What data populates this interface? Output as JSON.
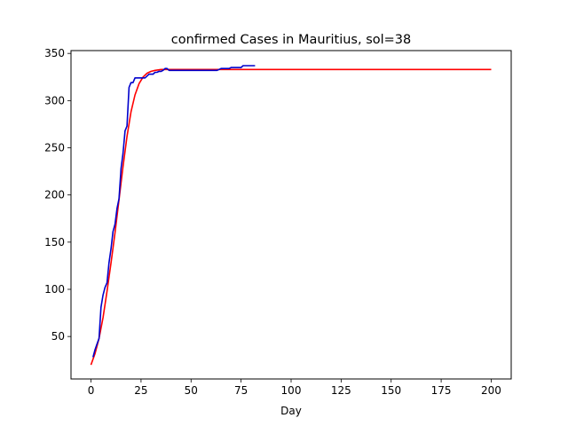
{
  "chart_data": {
    "type": "line",
    "title": "confirmed Cases in Mauritius, sol=38",
    "xlabel": "Day",
    "ylabel": "",
    "xlim": [
      -10,
      210
    ],
    "ylim": [
      5,
      353
    ],
    "xticks": [
      0,
      25,
      50,
      75,
      100,
      125,
      150,
      175,
      200
    ],
    "xtick_labels": [
      "0",
      "25",
      "50",
      "75",
      "100",
      "125",
      "150",
      "175",
      "200"
    ],
    "yticks": [
      50,
      100,
      150,
      200,
      250,
      300,
      350
    ],
    "ytick_labels": [
      "50",
      "100",
      "150",
      "200",
      "250",
      "300",
      "350"
    ],
    "grid": false,
    "legend": "none",
    "series": [
      {
        "color": "#ff0000",
        "x": [
          0,
          2,
          4,
          6,
          8,
          10,
          12,
          14,
          16,
          18,
          20,
          22,
          24,
          26,
          28,
          30,
          32,
          35,
          40,
          50,
          60,
          80,
          100,
          150,
          200
        ],
        "y": [
          20,
          32,
          48,
          70,
          98,
          128,
          160,
          195,
          230,
          262,
          288,
          306,
          318,
          325,
          329,
          331,
          332,
          333,
          333,
          333,
          333,
          333,
          333,
          333,
          333
        ]
      },
      {
        "color": "#0000cc",
        "x": [
          1,
          2,
          3,
          4,
          5,
          6,
          7,
          8,
          9,
          10,
          11,
          12,
          13,
          14,
          15,
          16,
          17,
          18,
          19,
          20,
          21,
          22,
          23,
          24,
          25,
          26,
          27,
          28,
          29,
          30,
          31,
          32,
          33,
          34,
          35,
          36,
          37,
          38,
          39,
          40,
          45,
          50,
          55,
          60,
          63,
          64,
          65,
          66,
          67,
          68,
          69,
          70,
          71,
          72,
          73,
          74,
          75,
          76,
          77,
          78,
          79,
          80,
          81,
          82
        ],
        "y": [
          28,
          36,
          42,
          48,
          81,
          94,
          102,
          107,
          128,
          143,
          161,
          169,
          186,
          196,
          228,
          244,
          268,
          273,
          314,
          319,
          319,
          324,
          324,
          324,
          324,
          324,
          324,
          326,
          328,
          328,
          328,
          330,
          330,
          331,
          331,
          332,
          334,
          334,
          332,
          332,
          332,
          332,
          332,
          332,
          332,
          333,
          334,
          334,
          334,
          334,
          334,
          335,
          335,
          335,
          335,
          335,
          335,
          337,
          337,
          337,
          337,
          337,
          337,
          337
        ]
      }
    ]
  }
}
